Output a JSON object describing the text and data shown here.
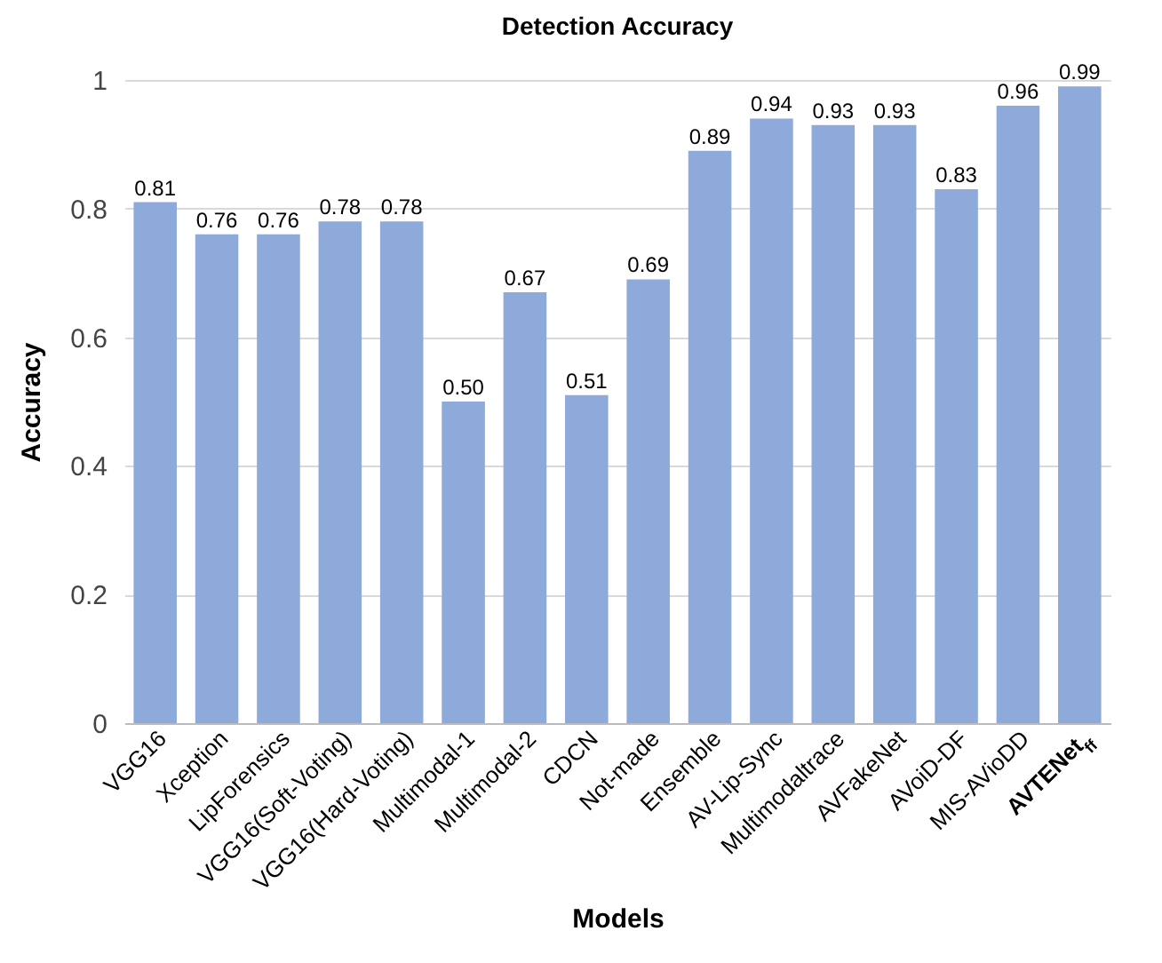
{
  "chart_data": {
    "type": "bar",
    "title": "Detection Accuracy",
    "xlabel": "Models",
    "ylabel": "Accuracy",
    "categories": [
      "VGG16",
      "Xception",
      "LipForensics",
      "VGG16(Soft-Voting)",
      "VGG16(Hard-Voting)",
      "Multimodal-1",
      "Multimodal-2",
      "CDCN",
      "Not-made",
      "Ensemble",
      "AV-Lip-Sync",
      "Multimodaltrace",
      "AVFakeNet",
      "AVoiD-DF",
      "MIS-AVioDD",
      "AVTENet$_{ff}$"
    ],
    "values": [
      0.81,
      0.76,
      0.76,
      0.78,
      0.78,
      0.5,
      0.67,
      0.51,
      0.69,
      0.89,
      0.94,
      0.93,
      0.93,
      0.83,
      0.96,
      0.99
    ],
    "value_labels": [
      "0.81",
      "0.76",
      "0.76",
      "0.78",
      "0.78",
      "0.50",
      "0.67",
      "0.51",
      "0.69",
      "0.89",
      "0.94",
      "0.93",
      "0.93",
      "0.83",
      "0.96",
      "0.99"
    ],
    "color": "#8eaadb",
    "ylim": [
      0,
      1
    ],
    "yticks": [
      0,
      0.2,
      0.4,
      0.6,
      0.8,
      1
    ],
    "grid": "y"
  }
}
